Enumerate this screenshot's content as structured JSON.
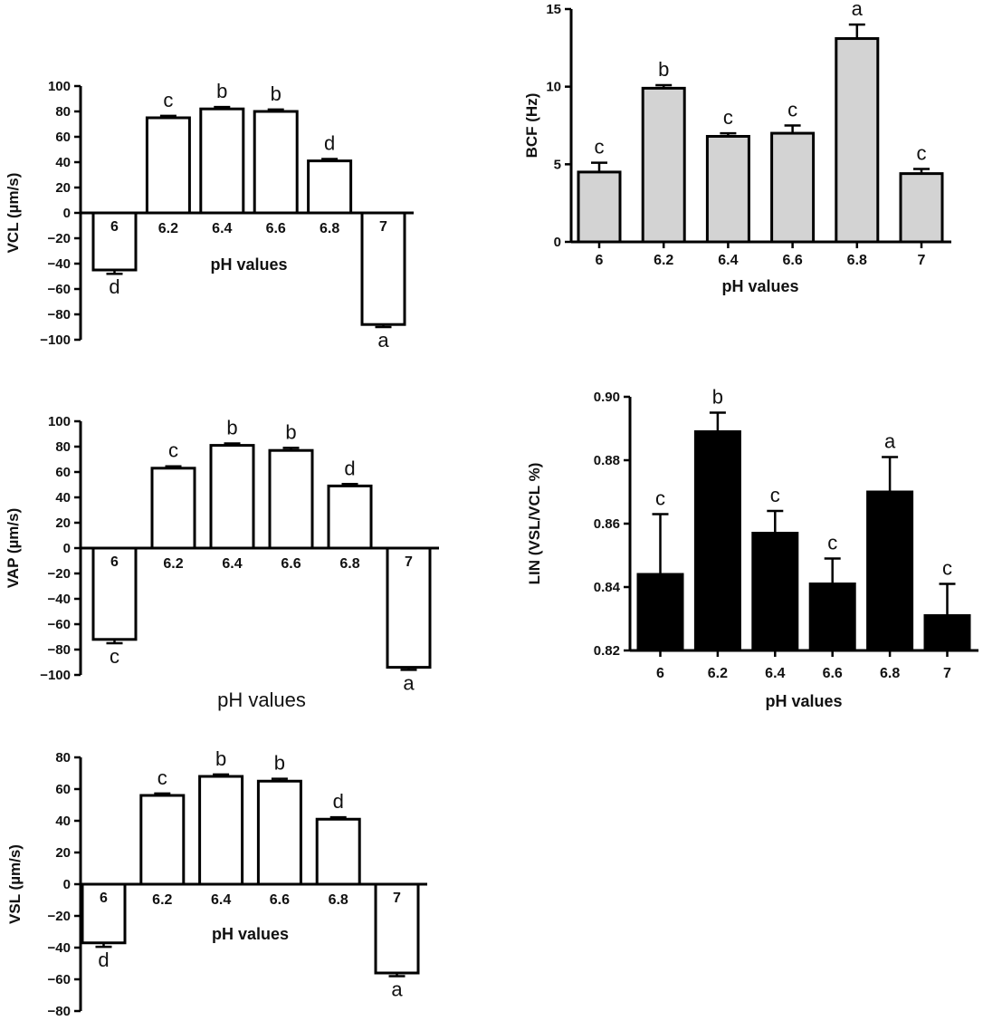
{
  "chart_data": [
    {
      "id": "vcl",
      "type": "bar",
      "ylabel": "VCL (µm/s)",
      "xlabel": "pH values",
      "categories": [
        "6",
        "6.2",
        "6.4",
        "6.6",
        "6.8",
        "7"
      ],
      "values": [
        -45,
        75,
        82,
        80,
        41,
        -88
      ],
      "errors": [
        3,
        1.5,
        1.5,
        1.5,
        1.5,
        2
      ],
      "significance": [
        "d",
        "c",
        "b",
        "b",
        "d",
        "a"
      ],
      "ylim": [
        -100,
        100
      ],
      "yticks": [
        "100",
        "80",
        "60",
        "40",
        "20",
        "0",
        "−20",
        "−40",
        "−60",
        "−80",
        "−100"
      ],
      "bar_color": "#ffffff"
    },
    {
      "id": "bcf",
      "type": "bar",
      "ylabel": "BCF (Hz)",
      "xlabel": "pH values",
      "categories": [
        "6",
        "6.2",
        "6.4",
        "6.6",
        "6.8",
        "7"
      ],
      "values": [
        4.5,
        9.9,
        6.8,
        7.0,
        13.1,
        4.4
      ],
      "errors": [
        0.6,
        0.2,
        0.2,
        0.5,
        0.9,
        0.3
      ],
      "significance": [
        "c",
        "b",
        "c",
        "c",
        "a",
        "c"
      ],
      "ylim": [
        0,
        15
      ],
      "yticks": [
        "15",
        "10",
        "5",
        "0"
      ],
      "bar_color": "#d3d3d3"
    },
    {
      "id": "vap",
      "type": "bar",
      "ylabel": "VAP (µm/s)",
      "xlabel": "pH values",
      "categories": [
        "6",
        "6.2",
        "6.4",
        "6.6",
        "6.8",
        "7"
      ],
      "values": [
        -72,
        63,
        81,
        77,
        49,
        -94
      ],
      "errors": [
        3,
        1.5,
        1.5,
        2,
        1.5,
        2
      ],
      "significance": [
        "c",
        "c",
        "b",
        "b",
        "d",
        "a"
      ],
      "ylim": [
        -100,
        100
      ],
      "yticks": [
        "100",
        "80",
        "60",
        "40",
        "20",
        "0",
        "−20",
        "−40",
        "−60",
        "−80",
        "−100"
      ],
      "bar_color": "#ffffff"
    },
    {
      "id": "lin",
      "type": "bar",
      "ylabel": "LIN (VSL/VCL %)",
      "xlabel": "pH values",
      "categories": [
        "6",
        "6.2",
        "6.4",
        "6.6",
        "6.8",
        "7"
      ],
      "values": [
        0.844,
        0.889,
        0.857,
        0.841,
        0.87,
        0.831
      ],
      "errors": [
        0.019,
        0.006,
        0.007,
        0.008,
        0.011,
        0.01
      ],
      "significance": [
        "c",
        "b",
        "c",
        "c",
        "a",
        "c"
      ],
      "ylim": [
        0.82,
        0.9
      ],
      "yticks": [
        "0.90",
        "0.88",
        "0.86",
        "0.84",
        "0.82"
      ],
      "bar_color": "#000000"
    },
    {
      "id": "vsl",
      "type": "bar",
      "ylabel": "VSL (µm/s)",
      "xlabel": "pH values",
      "categories": [
        "6",
        "6.2",
        "6.4",
        "6.6",
        "6.8",
        "7"
      ],
      "values": [
        -37,
        56,
        68,
        65,
        41,
        -56
      ],
      "errors": [
        2.5,
        1.2,
        1.2,
        1.5,
        1.2,
        2
      ],
      "significance": [
        "d",
        "c",
        "b",
        "b",
        "d",
        "a"
      ],
      "ylim": [
        -80,
        80
      ],
      "yticks": [
        "80",
        "60",
        "40",
        "20",
        "0",
        "−20",
        "−40",
        "−60",
        "−80"
      ],
      "bar_color": "#ffffff"
    }
  ]
}
